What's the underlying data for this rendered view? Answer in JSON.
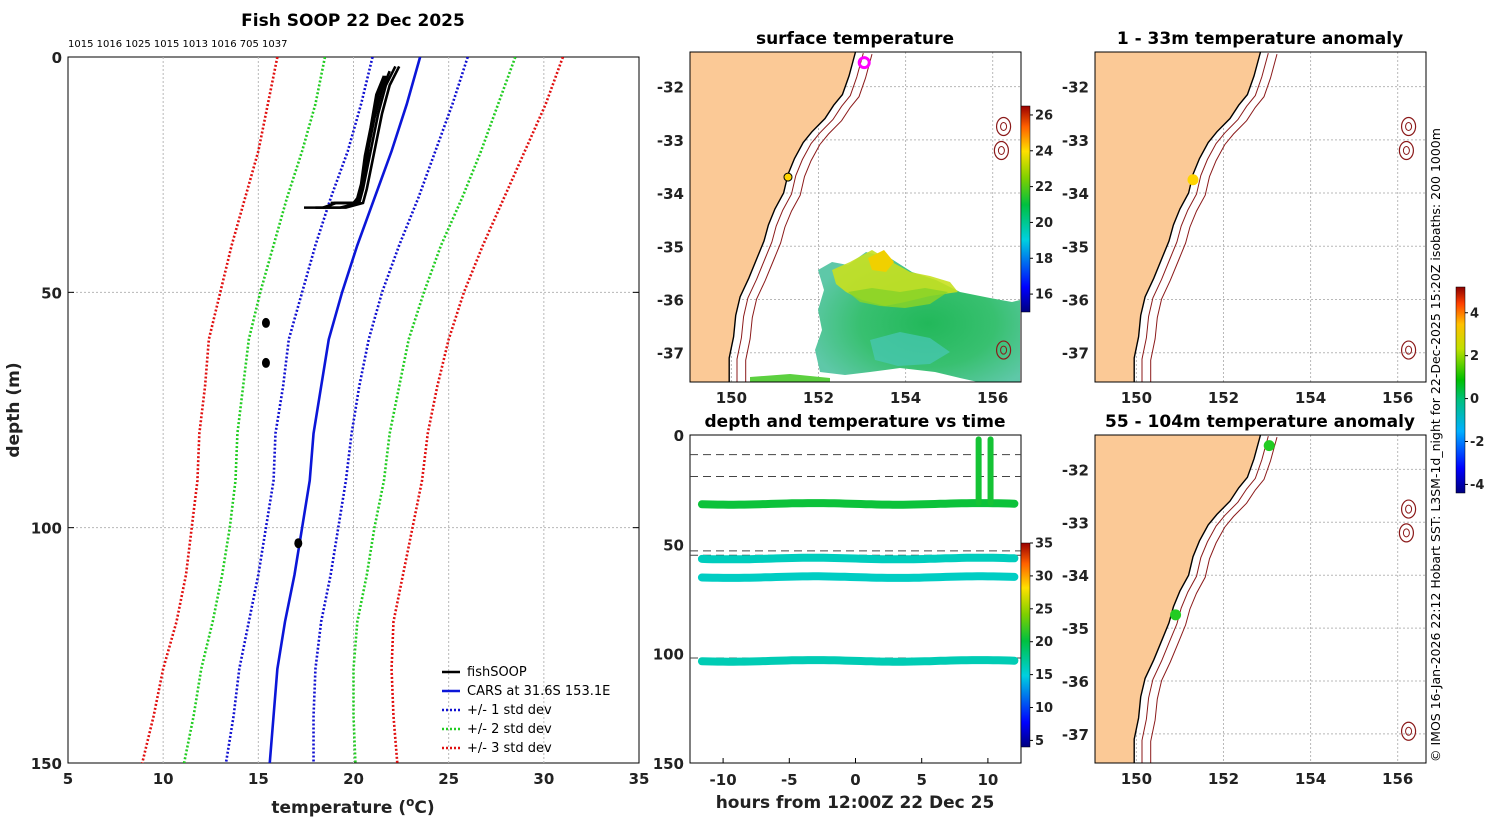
{
  "figure_title": "Fish SOOP 22 Dec 2025",
  "serials": "1015 1016 1025 1015 1013 1016 705 1037",
  "credit": "© IMOS 16-Jan-2026 22:12 Hobart SST: L3SM-1d_night for 22-Dec-2025 15:20Z isobaths: 200  1000m",
  "colors": {
    "land": "#fbc996",
    "black": "#000000",
    "cars": "#0b16d8",
    "std1": "#1010d0",
    "std2": "#22cc22",
    "std3": "#e01010",
    "iso": "#8b1a1a",
    "grid": "#b8b8b8"
  },
  "chart_data": [
    {
      "id": "profile",
      "type": "line",
      "title": "",
      "xlabel": "temperature (",
      "xlabel_sup": "o",
      "xlabel_end": "C)",
      "ylabel": "depth (m)",
      "xlim": [
        5,
        35
      ],
      "ylim": [
        0,
        150
      ],
      "xticks": [
        5,
        10,
        15,
        20,
        25,
        30,
        35
      ],
      "yticks": [
        0,
        50,
        100,
        150
      ],
      "legend": [
        "fishSOOP",
        "CARS at 31.6S 153.1E",
        "+/- 1 std dev",
        "+/- 2 std dev",
        "+/- 3 std dev"
      ],
      "cars": {
        "depth": [
          0,
          10,
          20,
          30,
          40,
          50,
          60,
          70,
          80,
          90,
          100,
          110,
          120,
          130,
          140,
          150
        ],
        "temp": [
          23.5,
          22.8,
          22.0,
          21.1,
          20.2,
          19.4,
          18.7,
          18.3,
          17.9,
          17.7,
          17.3,
          16.9,
          16.4,
          16.0,
          15.8,
          15.6
        ]
      },
      "std": [
        {
          "name": "+/- 1 std dev",
          "sd": [
            2.5,
            2.4,
            2.3,
            2.3,
            2.2,
            2.1,
            2.1,
            2.0,
            2.0,
            1.9,
            1.9,
            1.9,
            1.9,
            2.0,
            2.1,
            2.3
          ]
        },
        {
          "name": "+/- 2 std dev",
          "sd": [
            5.0,
            4.8,
            4.7,
            4.6,
            4.4,
            4.3,
            4.2,
            4.1,
            4.0,
            3.9,
            3.8,
            3.8,
            3.8,
            4.0,
            4.2,
            4.5
          ]
        },
        {
          "name": "+/- 3 std dev",
          "sd": [
            7.5,
            7.3,
            7.0,
            6.8,
            6.6,
            6.4,
            6.3,
            6.1,
            6.0,
            5.9,
            5.8,
            5.7,
            5.7,
            6.0,
            6.3,
            6.7
          ]
        }
      ],
      "fish": [
        {
          "depth": [
            2,
            6,
            12,
            18,
            24,
            28,
            31,
            32,
            32
          ],
          "temp": [
            22.4,
            21.9,
            21.5,
            21.2,
            20.9,
            20.7,
            20.5,
            19.6,
            17.4
          ]
        },
        {
          "depth": [
            2,
            6,
            12,
            18,
            24,
            28,
            31,
            32,
            32
          ],
          "temp": [
            22.2,
            21.7,
            21.3,
            21.0,
            20.7,
            20.5,
            20.3,
            19.3,
            18.0
          ]
        },
        {
          "depth": [
            3,
            7,
            13,
            19,
            25,
            29,
            31,
            31,
            32
          ],
          "temp": [
            21.9,
            21.5,
            21.1,
            20.8,
            20.6,
            20.4,
            20.2,
            19.0,
            18.6
          ]
        },
        {
          "depth": [
            4,
            8,
            14,
            20,
            26,
            30,
            31,
            31,
            31
          ],
          "temp": [
            21.7,
            21.3,
            21.0,
            20.7,
            20.5,
            20.3,
            20.1,
            19.5,
            18.8
          ]
        },
        {
          "depth": [
            4,
            8,
            15,
            21,
            27,
            30,
            31,
            31,
            32
          ],
          "temp": [
            21.6,
            21.2,
            20.9,
            20.6,
            20.4,
            20.2,
            20.0,
            19.1,
            18.4
          ]
        }
      ],
      "fish_clusters": [
        {
          "depth": 56.5,
          "temp": 15.4
        },
        {
          "depth": 65.0,
          "temp": 15.4
        },
        {
          "depth": 103.3,
          "temp": 17.1
        }
      ]
    },
    {
      "id": "sst",
      "type": "heatmap",
      "title": "surface temperature",
      "xticks": [
        150,
        152,
        154,
        156
      ],
      "yticks": [
        -32,
        -33,
        -34,
        -35,
        -36,
        -37
      ],
      "xlim": [
        149.05,
        156.65
      ],
      "ylim": [
        -37.55,
        -31.35
      ],
      "colorbar": {
        "ticks": [
          16,
          18,
          20,
          22,
          24,
          26
        ],
        "range": [
          15,
          26.5
        ]
      },
      "markers": [
        {
          "lon": 153.05,
          "lat": -31.55,
          "style": "magenta-ring"
        },
        {
          "lon": 151.3,
          "lat": -33.7,
          "style": "yellow-dot"
        }
      ]
    },
    {
      "id": "time",
      "type": "scatter",
      "title": "depth and temperature vs time",
      "xlabel": "hours from 12:00Z 22 Dec 25",
      "xlim": [
        -12.5,
        12.5
      ],
      "ylim": [
        0,
        150
      ],
      "xticks": [
        -10,
        -5,
        0,
        5,
        10
      ],
      "yticks": [
        0,
        50,
        100,
        150
      ],
      "dashed_depths": [
        9,
        19,
        53,
        55,
        102
      ],
      "tracks": [
        {
          "depth": 31.5,
          "temp": 20.5
        },
        {
          "depth": 56.5,
          "temp": 16.0
        },
        {
          "depth": 65.0,
          "temp": 15.8
        },
        {
          "depth": 103.3,
          "temp": 16.3
        }
      ],
      "spikes": [
        {
          "hour": 9.3,
          "from": 2,
          "to": 31
        },
        {
          "hour": 10.2,
          "from": 2,
          "to": 31
        }
      ],
      "colorbar": {
        "ticks": [
          5,
          10,
          15,
          20,
          25,
          30,
          35
        ],
        "range": [
          4,
          35
        ]
      }
    },
    {
      "id": "anom1",
      "type": "heatmap",
      "title": "1 - 33m temperature anomaly",
      "xticks": [
        150,
        152,
        154,
        156
      ],
      "yticks": [
        -32,
        -33,
        -34,
        -35,
        -36,
        -37
      ],
      "xlim": [
        149.05,
        156.65
      ],
      "ylim": [
        -37.55,
        -31.35
      ],
      "markers": [
        {
          "lon": 151.3,
          "lat": -33.75,
          "style": "yellow-dot"
        }
      ]
    },
    {
      "id": "anom2",
      "type": "heatmap",
      "title": "55 - 104m temperature anomaly",
      "xticks": [
        150,
        152,
        154,
        156
      ],
      "yticks": [
        -32,
        -33,
        -34,
        -35,
        -36,
        -37
      ],
      "xlim": [
        149.05,
        156.65
      ],
      "ylim": [
        -37.55,
        -31.35
      ],
      "markers": [
        {
          "lon": 153.05,
          "lat": -31.55,
          "style": "green-dot"
        },
        {
          "lon": 150.9,
          "lat": -34.75,
          "style": "green-dot"
        }
      ],
      "colorbar": {
        "ticks": [
          -4,
          -2,
          0,
          2,
          4
        ],
        "range": [
          -4.4,
          5.2
        ]
      }
    }
  ]
}
